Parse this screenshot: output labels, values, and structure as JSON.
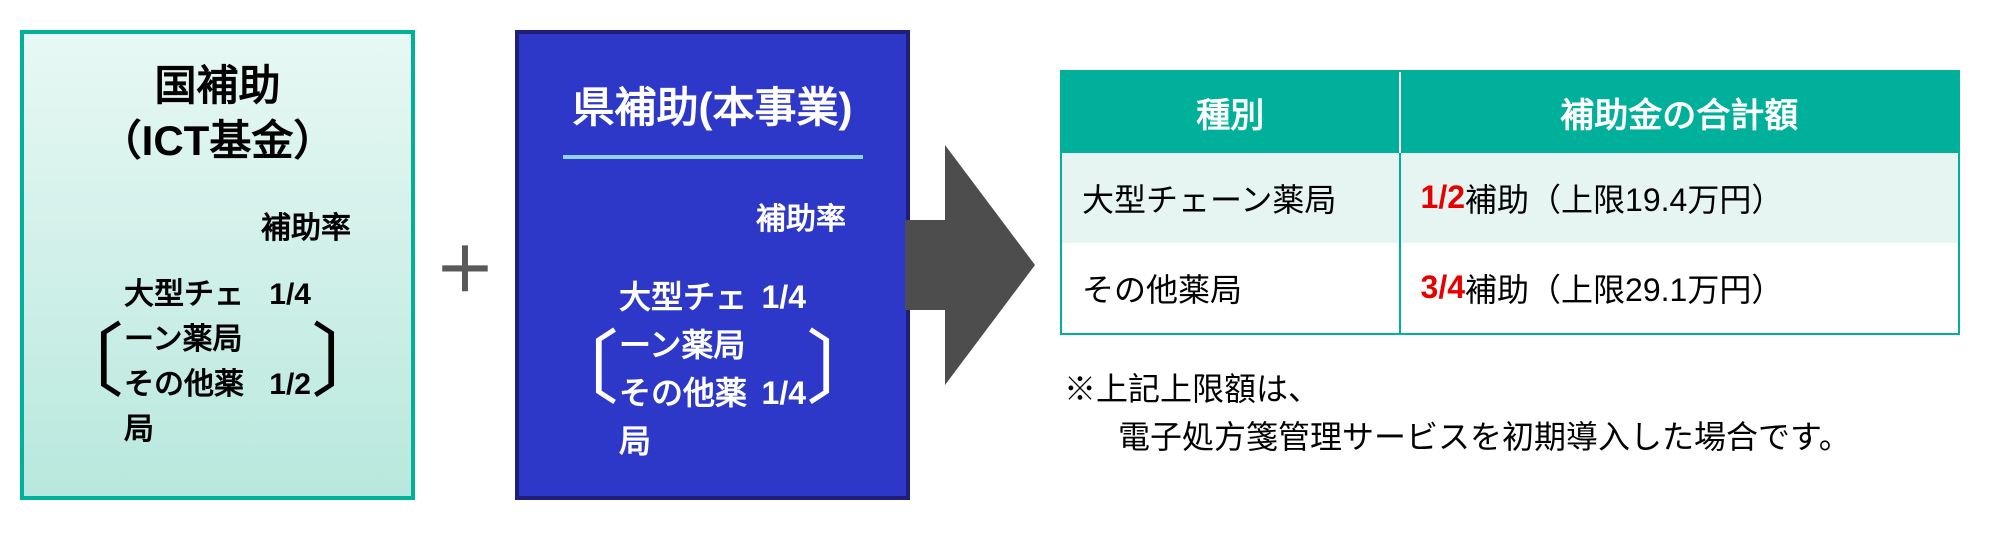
{
  "box1": {
    "title_line1": "国補助",
    "title_line2": "（ICT基金）",
    "rate_label": "補助率",
    "rate1_label": "大型チェーン薬局",
    "rate1_value": "1/4",
    "rate2_label": "その他薬局",
    "rate2_value": "1/2",
    "border_color": "#00b09a",
    "bg_gradient_top": "#e8f8f4",
    "bg_gradient_bottom": "#b8e8dd",
    "text_color": "#000000"
  },
  "plus": "＋",
  "box2": {
    "title": "県補助(本事業)",
    "rate_label": "補助率",
    "rate1_label": "大型チェーン薬局",
    "rate1_value": "1/4",
    "rate2_label": "その他薬局",
    "rate2_value": "1/4",
    "border_color": "#1f1f7a",
    "bg_color": "#2e38c8",
    "divider_color": "#8fd4ef",
    "text_color": "#ffffff"
  },
  "arrow": {
    "color": "#4d4d4d"
  },
  "table": {
    "header_bg": "#00b09a",
    "header_text_color": "#ffffff",
    "border_color": "#00b09a",
    "row_odd_bg": "#e6f5f1",
    "row_even_bg": "#ffffff",
    "header1": "種別",
    "header2": "補助金の合計額",
    "rows": [
      {
        "type": "大型チェーン薬局",
        "ratio": "1/2",
        "rest": "補助（上限19.4万円）"
      },
      {
        "type": "その他薬局",
        "ratio": "3/4",
        "rest": "補助（上限29.1万円）"
      }
    ]
  },
  "footnote": {
    "line1": "※上記上限額は、",
    "line2": "電子処方箋管理サービスを初期導入した場合です。"
  },
  "colors": {
    "red": "#e60000",
    "plus": "#595959"
  }
}
